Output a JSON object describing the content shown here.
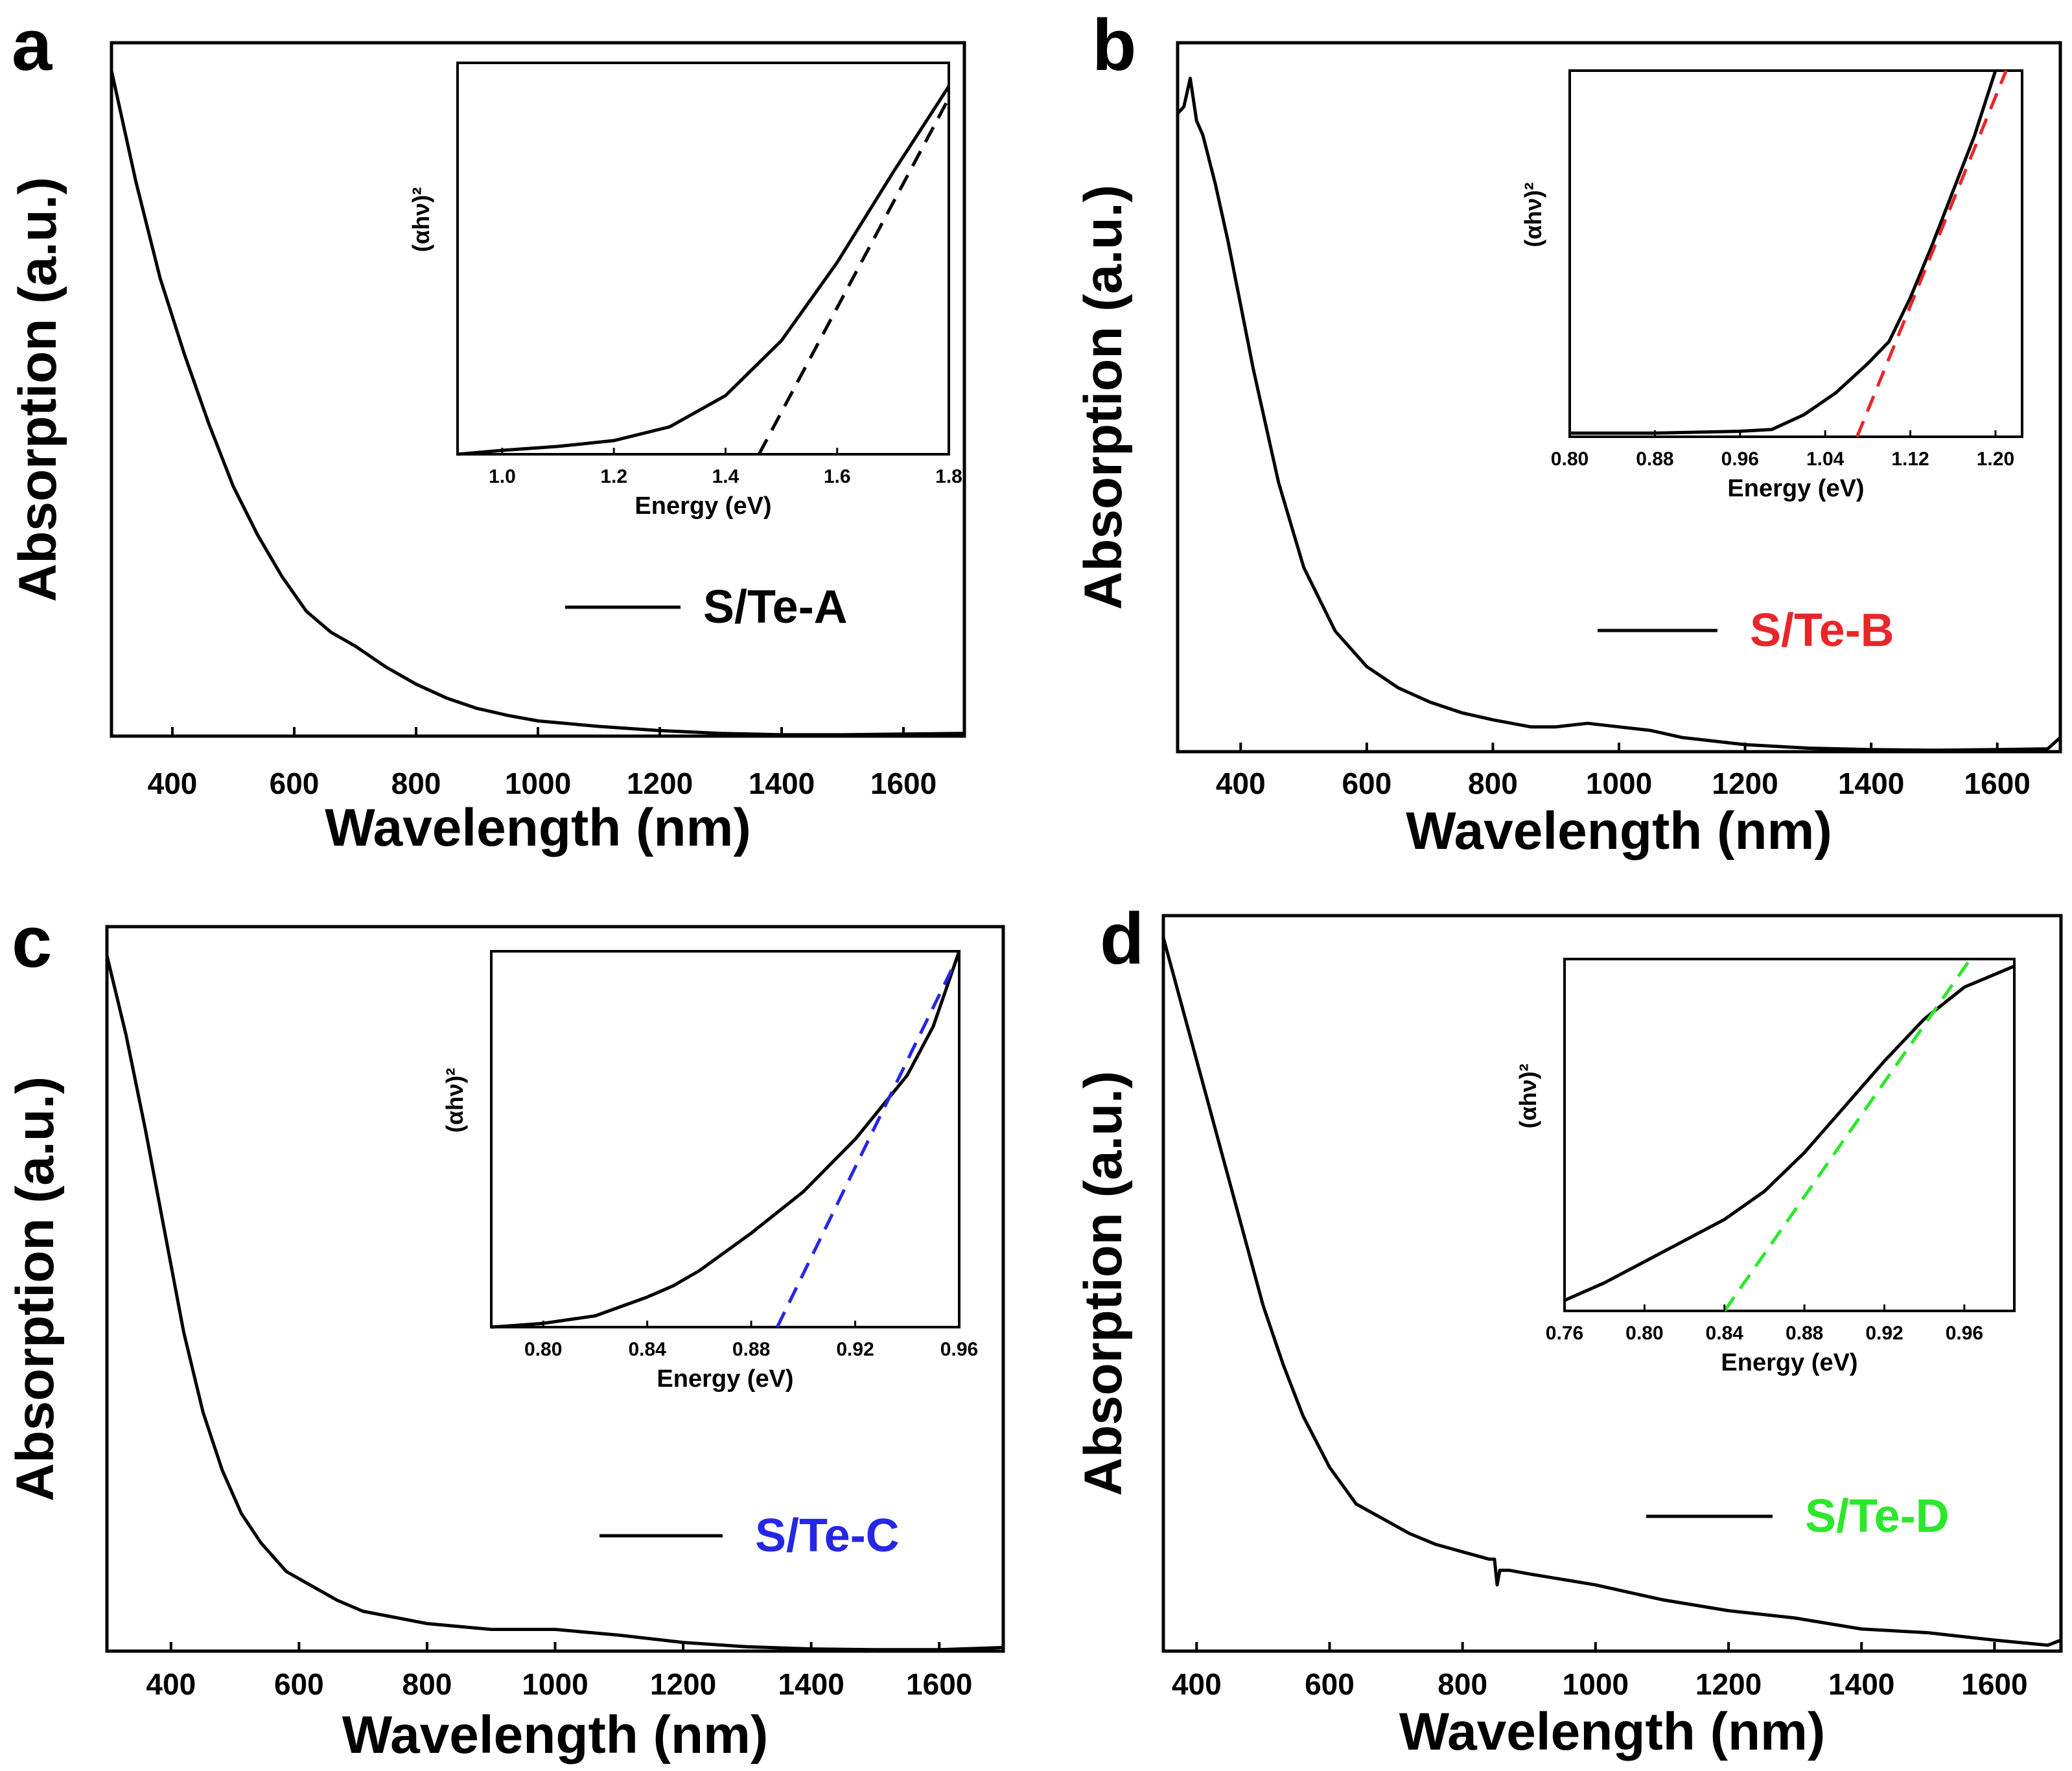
{
  "colors": {
    "black": "#000000",
    "red": "#e8262a",
    "blue": "#2626e8",
    "green": "#2be82b"
  },
  "chart_data": [
    {
      "panel": "a",
      "type": "line",
      "xlabel": "Wavelength (nm)",
      "ylabel": "Absorption (a.u.)",
      "xlim": [
        300,
        1700
      ],
      "ylim": [
        0,
        1
      ],
      "xticks": [
        400,
        600,
        800,
        1000,
        1200,
        1400,
        1600
      ],
      "legend": {
        "label": "S/Te-A",
        "color": "#000000",
        "position": "center-right"
      },
      "series": [
        {
          "name": "S/Te-A",
          "x": [
            300,
            340,
            380,
            420,
            460,
            500,
            540,
            580,
            620,
            660,
            700,
            750,
            800,
            850,
            900,
            950,
            1000,
            1100,
            1200,
            1300,
            1400,
            1500,
            1600,
            1700
          ],
          "y": [
            0.96,
            0.8,
            0.66,
            0.55,
            0.45,
            0.36,
            0.29,
            0.23,
            0.18,
            0.15,
            0.13,
            0.1,
            0.075,
            0.055,
            0.04,
            0.03,
            0.022,
            0.014,
            0.008,
            0.004,
            0.002,
            0.002,
            0.003,
            0.004
          ]
        }
      ],
      "inset": {
        "xlabel": "Energy (eV)",
        "ylabel": "(αhν)²",
        "xlim": [
          0.92,
          1.8
        ],
        "ylim": [
          0,
          1
        ],
        "xticks": [
          1.0,
          1.2,
          1.4,
          1.6,
          1.8
        ],
        "xtick_labels": [
          "1.0",
          "1.2",
          "1.4",
          "1.6",
          "1.8"
        ],
        "curve": {
          "x": [
            0.92,
            1.0,
            1.1,
            1.2,
            1.3,
            1.4,
            1.5,
            1.6,
            1.7,
            1.8
          ],
          "y": [
            0,
            0.01,
            0.02,
            0.035,
            0.07,
            0.15,
            0.29,
            0.49,
            0.72,
            0.94
          ]
        },
        "fit": {
          "x": [
            1.46,
            1.8
          ],
          "y": [
            0,
            0.91
          ],
          "color": "#000000"
        }
      }
    },
    {
      "panel": "b",
      "type": "line",
      "xlabel": "Wavelength (nm)",
      "ylabel": "Absorption (a.u.)",
      "xlim": [
        300,
        1700
      ],
      "ylim": [
        0,
        1
      ],
      "xticks": [
        400,
        600,
        800,
        1000,
        1200,
        1400,
        1600
      ],
      "legend": {
        "label": "S/Te-B",
        "color": "#e8262a",
        "position": "center-right"
      },
      "series": [
        {
          "name": "S/Te-B",
          "x": [
            300,
            310,
            320,
            330,
            340,
            360,
            380,
            400,
            420,
            440,
            460,
            480,
            500,
            550,
            600,
            650,
            700,
            750,
            800,
            860,
            900,
            950,
            1000,
            1050,
            1100,
            1200,
            1300,
            1400,
            1500,
            1600,
            1680,
            1700
          ],
          "y": [
            0.9,
            0.91,
            0.95,
            0.89,
            0.87,
            0.8,
            0.72,
            0.63,
            0.54,
            0.46,
            0.38,
            0.32,
            0.26,
            0.17,
            0.12,
            0.09,
            0.07,
            0.055,
            0.045,
            0.035,
            0.035,
            0.04,
            0.035,
            0.03,
            0.02,
            0.01,
            0.005,
            0.003,
            0.002,
            0.003,
            0.004,
            0.02
          ]
        }
      ],
      "inset": {
        "xlabel": "Energy (eV)",
        "ylabel": "(αhν)²",
        "xlim": [
          0.8,
          1.225
        ],
        "ylim": [
          0,
          1
        ],
        "xticks": [
          0.8,
          0.88,
          0.96,
          1.04,
          1.12,
          1.2
        ],
        "xtick_labels": [
          "0.80",
          "0.88",
          "0.96",
          "1.04",
          "1.12",
          "1.20"
        ],
        "curve": {
          "x": [
            0.8,
            0.88,
            0.96,
            0.99,
            1.02,
            1.05,
            1.08,
            1.1,
            1.12,
            1.14,
            1.16,
            1.18,
            1.2
          ],
          "y": [
            0.01,
            0.01,
            0.015,
            0.02,
            0.06,
            0.12,
            0.2,
            0.26,
            0.38,
            0.52,
            0.67,
            0.82,
            1.0
          ]
        },
        "fit": {
          "x": [
            1.07,
            1.21
          ],
          "y": [
            0,
            1.0
          ],
          "color": "#e8262a"
        }
      }
    },
    {
      "panel": "c",
      "type": "line",
      "xlabel": "Wavelength (nm)",
      "ylabel": "Absorption (a.u.)",
      "xlim": [
        300,
        1700
      ],
      "ylim": [
        0,
        1
      ],
      "xticks": [
        400,
        600,
        800,
        1000,
        1200,
        1400,
        1600
      ],
      "legend": {
        "label": "S/Te-C",
        "color": "#2626e8",
        "position": "center-right"
      },
      "series": [
        {
          "name": "S/Te-C",
          "x": [
            300,
            330,
            360,
            390,
            420,
            450,
            480,
            510,
            540,
            580,
            620,
            660,
            700,
            800,
            900,
            1000,
            1100,
            1200,
            1300,
            1400,
            1500,
            1600,
            1700
          ],
          "y": [
            0.96,
            0.85,
            0.72,
            0.58,
            0.44,
            0.33,
            0.25,
            0.19,
            0.15,
            0.11,
            0.09,
            0.07,
            0.055,
            0.038,
            0.03,
            0.03,
            0.022,
            0.012,
            0.006,
            0.003,
            0.002,
            0.002,
            0.005
          ]
        }
      ],
      "inset": {
        "xlabel": "Energy (eV)",
        "ylabel": "(αhν)²",
        "xlim": [
          0.78,
          0.96
        ],
        "ylim": [
          0,
          1
        ],
        "xticks": [
          0.8,
          0.84,
          0.88,
          0.92,
          0.96
        ],
        "xtick_labels": [
          "0.80",
          "0.84",
          "0.88",
          "0.92",
          "0.96"
        ],
        "curve": {
          "x": [
            0.78,
            0.8,
            0.82,
            0.84,
            0.85,
            0.86,
            0.88,
            0.9,
            0.92,
            0.94,
            0.95,
            0.96
          ],
          "y": [
            0,
            0.01,
            0.03,
            0.08,
            0.11,
            0.15,
            0.25,
            0.36,
            0.5,
            0.67,
            0.8,
            1.0
          ]
        },
        "fit": {
          "x": [
            0.89,
            0.957
          ],
          "y": [
            0,
            0.95
          ],
          "color": "#2626e8"
        }
      }
    },
    {
      "panel": "d",
      "type": "line",
      "xlabel": "Wavelength (nm)",
      "ylabel": "Absorption (a.u.)",
      "xlim": [
        350,
        1700
      ],
      "ylim": [
        0,
        1
      ],
      "xticks": [
        400,
        600,
        800,
        1000,
        1200,
        1400,
        1600
      ],
      "legend": {
        "label": "S/Te-D",
        "color": "#2be82b",
        "position": "center-right"
      },
      "series": [
        {
          "name": "S/Te-D",
          "x": [
            350,
            380,
            410,
            440,
            470,
            500,
            530,
            560,
            600,
            640,
            680,
            720,
            760,
            800,
            840,
            848,
            852,
            856,
            870,
            900,
            1000,
            1100,
            1200,
            1300,
            1400,
            1500,
            1600,
            1680,
            1700
          ],
          "y": [
            0.97,
            0.87,
            0.77,
            0.67,
            0.57,
            0.47,
            0.39,
            0.32,
            0.25,
            0.2,
            0.18,
            0.16,
            0.145,
            0.135,
            0.125,
            0.125,
            0.09,
            0.11,
            0.11,
            0.105,
            0.09,
            0.07,
            0.055,
            0.045,
            0.03,
            0.025,
            0.015,
            0.008,
            0.015
          ]
        }
      ],
      "inset": {
        "xlabel": "Energy (eV)",
        "ylabel": "(αhν)²",
        "xlim": [
          0.76,
          0.985
        ],
        "ylim": [
          0,
          1
        ],
        "xticks": [
          0.76,
          0.8,
          0.84,
          0.88,
          0.92,
          0.96
        ],
        "xtick_labels": [
          "0.76",
          "0.80",
          "0.84",
          "0.88",
          "0.92",
          "0.96"
        ],
        "curve": {
          "x": [
            0.76,
            0.78,
            0.8,
            0.82,
            0.84,
            0.86,
            0.88,
            0.9,
            0.92,
            0.94,
            0.96,
            0.985
          ],
          "y": [
            0.03,
            0.08,
            0.14,
            0.2,
            0.26,
            0.34,
            0.45,
            0.58,
            0.71,
            0.83,
            0.92,
            0.98
          ]
        },
        "fit": {
          "x": [
            0.84,
            0.963
          ],
          "y": [
            0,
            1.0
          ],
          "color": "#2be82b"
        }
      }
    }
  ]
}
